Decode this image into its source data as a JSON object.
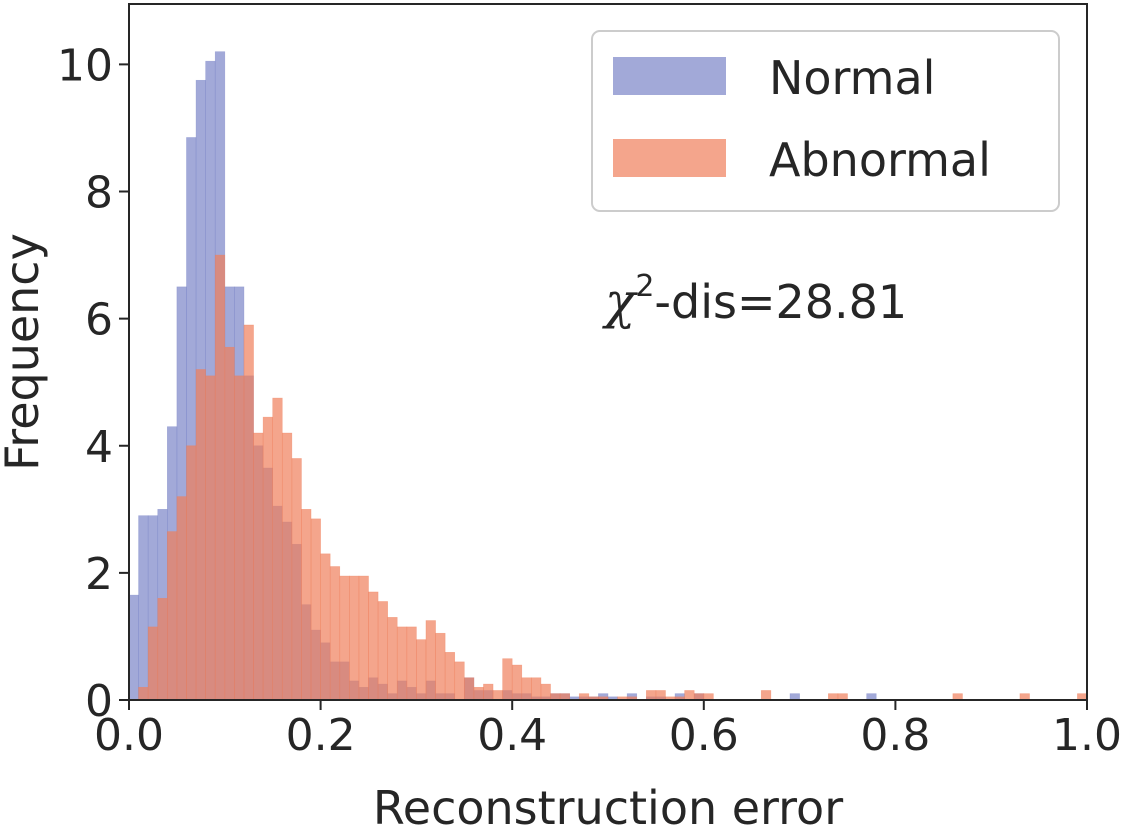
{
  "chart_data": {
    "type": "histogram",
    "xlabel": "Reconstruction error",
    "ylabel": "Frequency",
    "xlim": [
      0.0,
      1.0
    ],
    "ylim": [
      0,
      10.95
    ],
    "x_ticks": [
      0.0,
      0.2,
      0.4,
      0.6,
      0.8,
      1.0
    ],
    "x_tick_labels": [
      "0.0",
      "0.2",
      "0.4",
      "0.6",
      "0.8",
      "1.0"
    ],
    "y_ticks": [
      0,
      2,
      4,
      6,
      8,
      10
    ],
    "y_tick_labels": [
      "0",
      "2",
      "4",
      "6",
      "8",
      "10"
    ],
    "bin_width": 0.01,
    "bin_starts": [
      0.0,
      0.01,
      0.02,
      0.03,
      0.04,
      0.05,
      0.06,
      0.07,
      0.08,
      0.09,
      0.1,
      0.11,
      0.12,
      0.13,
      0.14,
      0.15,
      0.16,
      0.17,
      0.18,
      0.19,
      0.2,
      0.21,
      0.22,
      0.23,
      0.24,
      0.25,
      0.26,
      0.27,
      0.28,
      0.29,
      0.3,
      0.31,
      0.32,
      0.33,
      0.34,
      0.35,
      0.36,
      0.37,
      0.38,
      0.39,
      0.4,
      0.41,
      0.42,
      0.43,
      0.44,
      0.45,
      0.46,
      0.47,
      0.48,
      0.49,
      0.5,
      0.51,
      0.52,
      0.53,
      0.54,
      0.55,
      0.56,
      0.57,
      0.58,
      0.59,
      0.6,
      0.61,
      0.62,
      0.63,
      0.64,
      0.65,
      0.66,
      0.67,
      0.68,
      0.69,
      0.7,
      0.71,
      0.72,
      0.73,
      0.74,
      0.75,
      0.76,
      0.77,
      0.78,
      0.79,
      0.8,
      0.81,
      0.82,
      0.83,
      0.84,
      0.85,
      0.86,
      0.87,
      0.88,
      0.89,
      0.9,
      0.91,
      0.92,
      0.93,
      0.94,
      0.95,
      0.96,
      0.97,
      0.98,
      0.99
    ],
    "series": [
      {
        "name": "Normal",
        "color": "#7b85c8",
        "values": [
          1.65,
          2.9,
          2.9,
          3.0,
          4.3,
          6.5,
          8.85,
          9.75,
          10.05,
          10.2,
          6.5,
          6.5,
          5.1,
          4.0,
          3.65,
          3.05,
          2.8,
          2.45,
          1.5,
          1.1,
          0.9,
          0.6,
          0.6,
          0.3,
          0.2,
          0.35,
          0.25,
          0.1,
          0.3,
          0.2,
          0.1,
          0.3,
          0.1,
          0.1,
          0.0,
          0.35,
          0.15,
          0.15,
          0.0,
          0.15,
          0.1,
          0.1,
          0.05,
          0.05,
          0.1,
          0.1,
          0.05,
          0.05,
          0.05,
          0.1,
          0.05,
          0.0,
          0.1,
          0.0,
          0.05,
          0.05,
          0.0,
          0.1,
          0.0,
          0.1,
          0.0,
          0.0,
          0.0,
          0.0,
          0.0,
          0.0,
          0.0,
          0.0,
          0.0,
          0.1,
          0.0,
          0.0,
          0.0,
          0.0,
          0.0,
          0.0,
          0.0,
          0.1,
          0.0,
          0.0,
          0.0,
          0.0,
          0.0,
          0.0,
          0.0,
          0.0,
          0.0,
          0.0,
          0.0,
          0.0,
          0.0,
          0.0,
          0.0,
          0.0,
          0.0,
          0.0,
          0.0,
          0.0,
          0.0,
          0.0
        ]
      },
      {
        "name": "Abnormal",
        "color": "#f07f5b",
        "values": [
          0.0,
          0.2,
          1.15,
          1.6,
          2.65,
          3.2,
          4.0,
          5.2,
          5.1,
          7.0,
          5.55,
          5.1,
          5.9,
          4.2,
          4.45,
          4.75,
          4.2,
          3.8,
          3.0,
          2.85,
          2.3,
          2.1,
          1.95,
          1.95,
          1.95,
          1.7,
          1.55,
          1.3,
          1.15,
          1.15,
          0.95,
          1.25,
          1.05,
          0.75,
          0.6,
          0.35,
          0.2,
          0.25,
          0.15,
          0.65,
          0.55,
          0.35,
          0.35,
          0.25,
          0.1,
          0.1,
          0.0,
          0.1,
          0.05,
          0.05,
          0.0,
          0.05,
          0.05,
          0.0,
          0.15,
          0.15,
          0.05,
          0.05,
          0.15,
          0.1,
          0.1,
          0.0,
          0.0,
          0.0,
          0.0,
          0.0,
          0.15,
          0.0,
          0.0,
          0.0,
          0.0,
          0.0,
          0.0,
          0.1,
          0.1,
          0.0,
          0.0,
          0.0,
          0.0,
          0.0,
          0.0,
          0.0,
          0.0,
          0.0,
          0.0,
          0.0,
          0.1,
          0.0,
          0.0,
          0.0,
          0.0,
          0.0,
          0.0,
          0.1,
          0.0,
          0.0,
          0.0,
          0.0,
          0.0,
          0.1
        ]
      }
    ],
    "legend": {
      "placement": "top-right",
      "items": [
        {
          "label": "Normal",
          "color": "#7b85c8"
        },
        {
          "label": "Abnormal",
          "color": "#f07f5b"
        }
      ]
    },
    "annotation": {
      "symbol": "χ",
      "superscript": "2",
      "text": "-dis=28.81"
    }
  }
}
